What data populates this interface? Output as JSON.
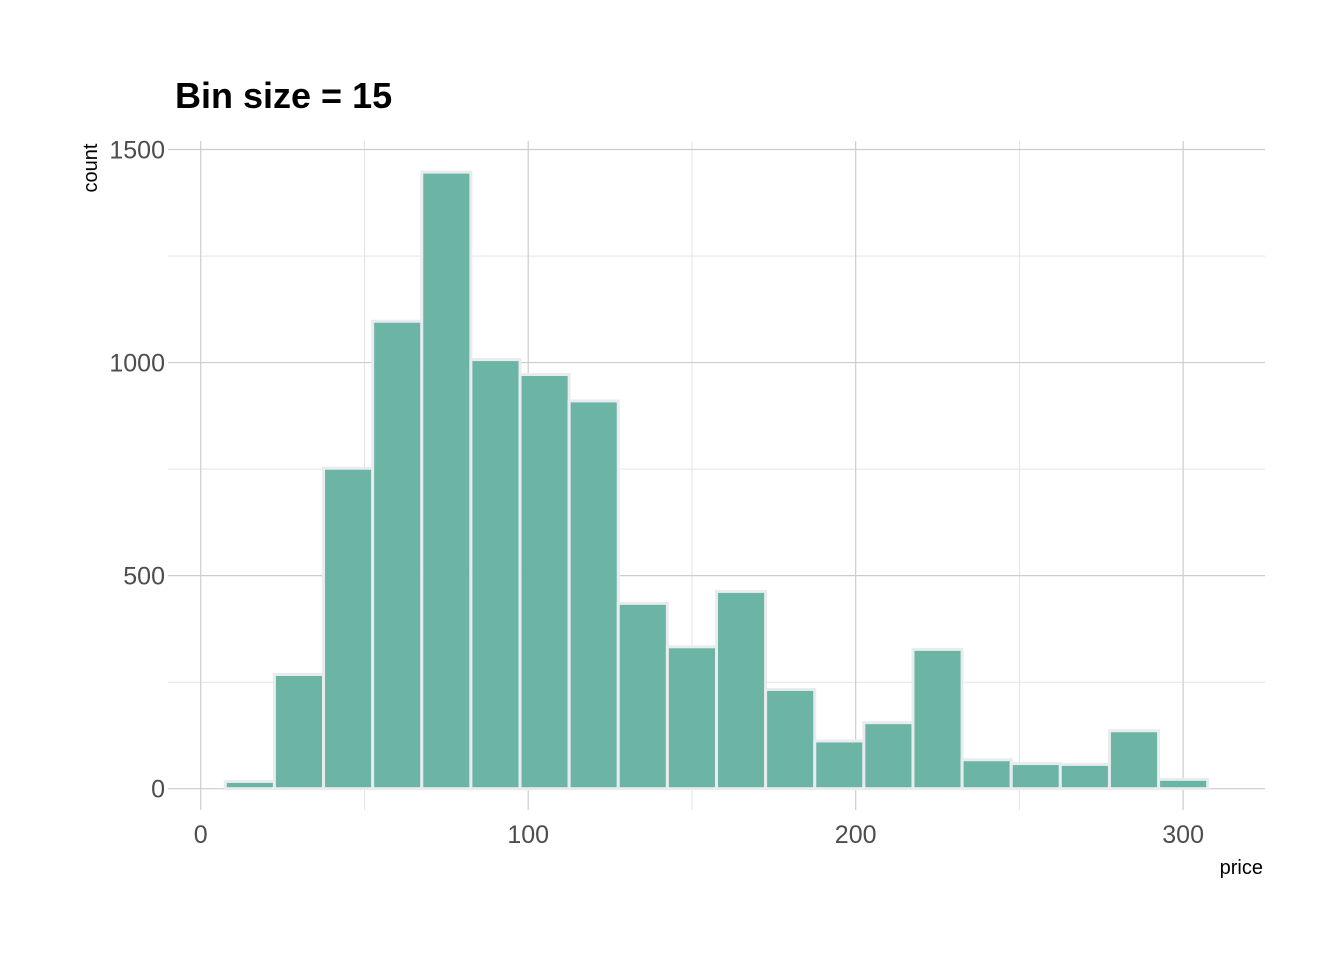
{
  "colors": {
    "bar_fill": "#69b3a2",
    "bar_stroke": "#e9ecef",
    "background": "#ffffff"
  },
  "chart_data": {
    "type": "bar",
    "title": "Bin size = 15",
    "xlabel": "price",
    "ylabel": "count",
    "bin_width": 15,
    "xlim": [
      -10,
      325
    ],
    "ylim": [
      -50,
      1520
    ],
    "x_ticks": [
      0,
      100,
      200,
      300
    ],
    "y_ticks": [
      0,
      500,
      1000,
      1500
    ],
    "grid": true,
    "bins": [
      {
        "start": 7.5,
        "end": 22.5,
        "count": 17
      },
      {
        "start": 22.5,
        "end": 37.5,
        "count": 268
      },
      {
        "start": 37.5,
        "end": 52.5,
        "count": 752
      },
      {
        "start": 52.5,
        "end": 67.5,
        "count": 1097
      },
      {
        "start": 67.5,
        "end": 82.5,
        "count": 1447
      },
      {
        "start": 82.5,
        "end": 97.5,
        "count": 1007
      },
      {
        "start": 97.5,
        "end": 112.5,
        "count": 972
      },
      {
        "start": 112.5,
        "end": 127.5,
        "count": 910
      },
      {
        "start": 127.5,
        "end": 142.5,
        "count": 435
      },
      {
        "start": 142.5,
        "end": 157.5,
        "count": 333
      },
      {
        "start": 157.5,
        "end": 172.5,
        "count": 463
      },
      {
        "start": 172.5,
        "end": 187.5,
        "count": 233
      },
      {
        "start": 187.5,
        "end": 202.5,
        "count": 112
      },
      {
        "start": 202.5,
        "end": 217.5,
        "count": 155
      },
      {
        "start": 217.5,
        "end": 232.5,
        "count": 327
      },
      {
        "start": 232.5,
        "end": 247.5,
        "count": 68
      },
      {
        "start": 247.5,
        "end": 262.5,
        "count": 59
      },
      {
        "start": 262.5,
        "end": 277.5,
        "count": 57
      },
      {
        "start": 277.5,
        "end": 292.5,
        "count": 136
      },
      {
        "start": 292.5,
        "end": 307.5,
        "count": 22
      }
    ]
  }
}
